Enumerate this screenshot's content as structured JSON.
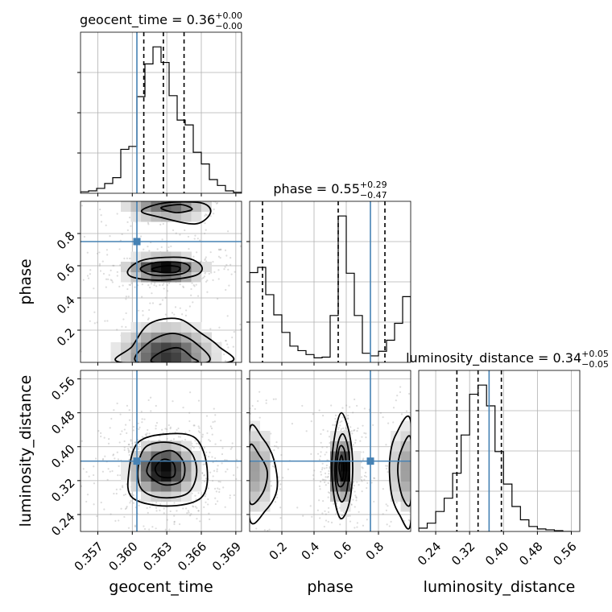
{
  "chart_data": {
    "type": "corner",
    "parameters": [
      {
        "name": "geocent_time",
        "label": "geocent_time",
        "range": [
          0.3555,
          0.3695
        ],
        "ticks": [
          0.357,
          0.36,
          0.363,
          0.366,
          0.369
        ],
        "tick_labels": [
          "0.357",
          "0.360",
          "0.363",
          "0.366",
          "0.369"
        ],
        "truth": 0.3604,
        "quantiles": [
          0.361,
          0.3627,
          0.3645
        ],
        "title": {
          "prefix": "geocent_time = 0.36",
          "upper": "+0.00",
          "lower": "−0.00"
        },
        "histogram": {
          "edges": [
            0.3555,
            0.3562,
            0.3569,
            0.3576,
            0.3583,
            0.359,
            0.3597,
            0.3604,
            0.3611,
            0.3618,
            0.3625,
            0.3632,
            0.3639,
            0.3646,
            0.3653,
            0.366,
            0.3667,
            0.3674,
            0.3681,
            0.3688,
            0.3695
          ],
          "counts": [
            3,
            5,
            10,
            20,
            32,
            90,
            96,
            198,
            265,
            300,
            268,
            200,
            150,
            140,
            84,
            60,
            28,
            16,
            5,
            2
          ]
        }
      },
      {
        "name": "phase",
        "label": "phase",
        "range": [
          0.0,
          1.0
        ],
        "ticks": [
          0.2,
          0.4,
          0.6,
          0.8
        ],
        "tick_labels": [
          "0.2",
          "0.4",
          "0.6",
          "0.8"
        ],
        "truth": 0.75,
        "quantiles": [
          0.08,
          0.55,
          0.84
        ],
        "title": {
          "prefix": "phase = 0.55",
          "upper": "+0.29",
          "lower": "−0.47"
        },
        "histogram": {
          "edges": [
            0.0,
            0.05,
            0.1,
            0.15,
            0.2,
            0.25,
            0.3,
            0.35,
            0.4,
            0.45,
            0.5,
            0.55,
            0.6,
            0.65,
            0.7,
            0.75,
            0.8,
            0.85,
            0.9,
            0.95,
            1.0
          ],
          "counts": [
            138,
            146,
            104,
            73,
            46,
            25,
            18,
            12,
            7,
            8,
            72,
            225,
            137,
            72,
            14,
            10,
            17,
            34,
            60,
            101
          ]
        }
      },
      {
        "name": "luminosity_distance",
        "label": "luminosity_distance",
        "range": [
          0.2,
          0.58
        ],
        "ticks": [
          0.24,
          0.32,
          0.4,
          0.48,
          0.56
        ],
        "tick_labels": [
          "0.24",
          "0.32",
          "0.40",
          "0.48",
          "0.56"
        ],
        "truth": 0.366,
        "quantiles": [
          0.29,
          0.34,
          0.395
        ],
        "title": {
          "prefix": "luminosity_distance = 0.34",
          "upper": "+0.05",
          "lower": "−0.05"
        },
        "histogram": {
          "edges": [
            0.2,
            0.22,
            0.24,
            0.26,
            0.28,
            0.3,
            0.32,
            0.34,
            0.36,
            0.38,
            0.4,
            0.42,
            0.44,
            0.46,
            0.48,
            0.5,
            0.52,
            0.54,
            0.56
          ],
          "counts": [
            4,
            10,
            24,
            40,
            70,
            116,
            165,
            176,
            151,
            96,
            57,
            30,
            14,
            6,
            3,
            2,
            1,
            0
          ]
        }
      }
    ],
    "pairs": [
      {
        "x": "geocent_time",
        "y": "phase",
        "truth": [
          0.3604,
          0.75
        ],
        "blobs": [
          {
            "cx": 0.3628,
            "cy": 0.58,
            "sx": 0.0018,
            "sy": 0.045,
            "w": 1.0
          },
          {
            "cx": 0.363,
            "cy": 0.98,
            "sx": 0.002,
            "sy": 0.06,
            "w": 0.6
          },
          {
            "cx": 0.363,
            "cy": 0.05,
            "sx": 0.0022,
            "sy": 0.1,
            "w": 0.8
          }
        ],
        "contours": [
          [
            [
              0.3597,
              0.58
            ],
            [
              0.3612,
              0.64
            ],
            [
              0.3645,
              0.65
            ],
            [
              0.366,
              0.6
            ],
            [
              0.3655,
              0.54
            ],
            [
              0.3625,
              0.51
            ],
            [
              0.36,
              0.53
            ]
          ],
          [
            [
              0.3607,
              0.58
            ],
            [
              0.362,
              0.62
            ],
            [
              0.3642,
              0.62
            ],
            [
              0.365,
              0.59
            ],
            [
              0.3643,
              0.55
            ],
            [
              0.362,
              0.54
            ]
          ],
          [
            [
              0.3617,
              0.58
            ],
            [
              0.363,
              0.6
            ],
            [
              0.3641,
              0.59
            ],
            [
              0.3638,
              0.56
            ],
            [
              0.3624,
              0.56
            ]
          ],
          [
            [
              0.3608,
              0.94
            ],
            [
              0.3628,
              0.99
            ],
            [
              0.366,
              0.99
            ],
            [
              0.3668,
              0.93
            ],
            [
              0.3655,
              0.86
            ],
            [
              0.3625,
              0.9
            ]
          ],
          [
            [
              0.3625,
              0.96
            ],
            [
              0.3642,
              0.98
            ],
            [
              0.3652,
              0.95
            ],
            [
              0.3638,
              0.93
            ]
          ],
          [
            [
              0.359,
              0.0
            ],
            [
              0.36,
              0.1
            ],
            [
              0.3615,
              0.24
            ],
            [
              0.364,
              0.27
            ],
            [
              0.366,
              0.18
            ],
            [
              0.3675,
              0.1
            ],
            [
              0.3683,
              0.0
            ]
          ],
          [
            [
              0.3605,
              0.0
            ],
            [
              0.3614,
              0.12
            ],
            [
              0.3635,
              0.18
            ],
            [
              0.3655,
              0.12
            ],
            [
              0.3665,
              0.0
            ]
          ],
          [
            [
              0.3618,
              0.0
            ],
            [
              0.3624,
              0.06
            ],
            [
              0.364,
              0.09
            ],
            [
              0.3652,
              0.03
            ],
            [
              0.3655,
              0.0
            ]
          ]
        ]
      },
      {
        "x": "geocent_time",
        "y": "luminosity_distance",
        "truth": [
          0.3604,
          0.366
        ],
        "blobs": [
          {
            "cx": 0.3627,
            "cy": 0.345,
            "sx": 0.0015,
            "sy": 0.035,
            "w": 1.0
          }
        ],
        "contours": [
          [
            [
              0.3597,
              0.34
            ],
            [
              0.3605,
              0.41
            ],
            [
              0.363,
              0.43
            ],
            [
              0.3655,
              0.42
            ],
            [
              0.3665,
              0.35
            ],
            [
              0.366,
              0.28
            ],
            [
              0.363,
              0.26
            ],
            [
              0.36,
              0.28
            ]
          ],
          [
            [
              0.3605,
              0.35
            ],
            [
              0.3612,
              0.4
            ],
            [
              0.3632,
              0.41
            ],
            [
              0.365,
              0.39
            ],
            [
              0.3656,
              0.34
            ],
            [
              0.3648,
              0.29
            ],
            [
              0.3625,
              0.28
            ],
            [
              0.3608,
              0.3
            ]
          ],
          [
            [
              0.3613,
              0.35
            ],
            [
              0.362,
              0.38
            ],
            [
              0.3635,
              0.39
            ],
            [
              0.3645,
              0.36
            ],
            [
              0.3643,
              0.32
            ],
            [
              0.3628,
              0.31
            ],
            [
              0.3615,
              0.33
            ]
          ],
          [
            [
              0.362,
              0.35
            ],
            [
              0.3627,
              0.37
            ],
            [
              0.3636,
              0.36
            ],
            [
              0.3636,
              0.33
            ],
            [
              0.3624,
              0.33
            ]
          ]
        ]
      },
      {
        "x": "phase",
        "y": "luminosity_distance",
        "truth": [
          0.75,
          0.366
        ],
        "blobs": [
          {
            "cx": 0.57,
            "cy": 0.345,
            "sx": 0.04,
            "sy": 0.04,
            "w": 1.0
          },
          {
            "cx": 0.05,
            "cy": 0.345,
            "sx": 0.05,
            "sy": 0.06,
            "w": 0.35
          },
          {
            "cx": 1.0,
            "cy": 0.345,
            "sx": 0.08,
            "sy": 0.06,
            "w": 0.35
          }
        ],
        "contours": [
          [
            [
              0.51,
              0.35
            ],
            [
              0.53,
              0.43
            ],
            [
              0.57,
              0.48
            ],
            [
              0.62,
              0.43
            ],
            [
              0.64,
              0.35
            ],
            [
              0.62,
              0.27
            ],
            [
              0.57,
              0.23
            ],
            [
              0.53,
              0.27
            ]
          ],
          [
            [
              0.53,
              0.35
            ],
            [
              0.55,
              0.41
            ],
            [
              0.58,
              0.43
            ],
            [
              0.61,
              0.4
            ],
            [
              0.62,
              0.35
            ],
            [
              0.6,
              0.29
            ],
            [
              0.57,
              0.27
            ],
            [
              0.54,
              0.3
            ]
          ],
          [
            [
              0.54,
              0.35
            ],
            [
              0.56,
              0.4
            ],
            [
              0.59,
              0.39
            ],
            [
              0.6,
              0.34
            ],
            [
              0.58,
              0.31
            ],
            [
              0.55,
              0.31
            ]
          ],
          [
            [
              0.555,
              0.35
            ],
            [
              0.57,
              0.38
            ],
            [
              0.585,
              0.35
            ],
            [
              0.575,
              0.32
            ]
          ],
          [
            [
              0.0,
              0.44
            ],
            [
              0.08,
              0.42
            ],
            [
              0.15,
              0.37
            ],
            [
              0.17,
              0.3
            ],
            [
              0.1,
              0.25
            ],
            [
              0.0,
              0.23
            ]
          ],
          [
            [
              0.0,
              0.4
            ],
            [
              0.06,
              0.38
            ],
            [
              0.11,
              0.34
            ],
            [
              0.08,
              0.29
            ],
            [
              0.0,
              0.27
            ]
          ],
          [
            [
              1.0,
              0.46
            ],
            [
              0.91,
              0.43
            ],
            [
              0.87,
              0.37
            ],
            [
              0.88,
              0.29
            ],
            [
              0.93,
              0.24
            ],
            [
              1.0,
              0.22
            ]
          ],
          [
            [
              1.0,
              0.42
            ],
            [
              0.94,
              0.39
            ],
            [
              0.92,
              0.34
            ],
            [
              0.95,
              0.28
            ],
            [
              1.0,
              0.27
            ]
          ]
        ]
      }
    ],
    "colors": {
      "truth": "#4682b4",
      "histogram": "#000000",
      "grid": "#b0b0b0",
      "scatter": "#9a9a9a"
    }
  }
}
